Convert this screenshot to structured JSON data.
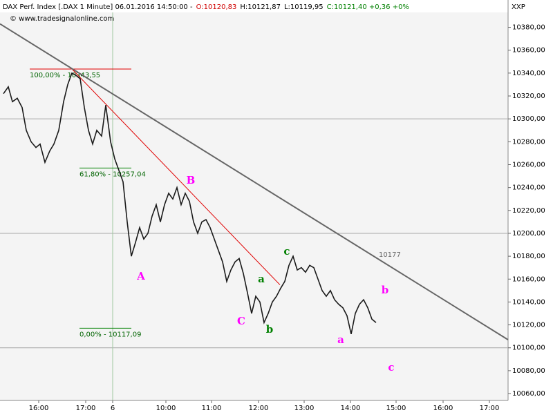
{
  "chart_data": {
    "type": "line",
    "header": [
      {
        "text": "DAX Perf. Index [.DAX  1 Minute] 06.01.2016 14:50:00 -",
        "color": "#000000"
      },
      {
        "text": "O:10120,83",
        "color": "#d00000"
      },
      {
        "text": "H:10121,87",
        "color": "#000000"
      },
      {
        "text": "L:10119,95",
        "color": "#000000"
      },
      {
        "text": "C:10121,40 +0,36 +0%",
        "color": "#008000"
      }
    ],
    "copyright": "© www.tradesignalonline.com",
    "axis_label": "XXP",
    "x": [
      5,
      12,
      18,
      25,
      32,
      38,
      45,
      52,
      58,
      65,
      72,
      78,
      85,
      92,
      98,
      104,
      110,
      116,
      122,
      128,
      134,
      140,
      147,
      153,
      160,
      166,
      172,
      178,
      184,
      190,
      196,
      202,
      208,
      214,
      220,
      226,
      232,
      238,
      244,
      250,
      256,
      262,
      268,
      274,
      280,
      286,
      292,
      298,
      304,
      310,
      316,
      322,
      328,
      334,
      340,
      346,
      352,
      358,
      364,
      370,
      376,
      382,
      388,
      394,
      400,
      406,
      412,
      418,
      424,
      430,
      436,
      442,
      448,
      454,
      460,
      466,
      472,
      478,
      484,
      490,
      496,
      502,
      508,
      514,
      520,
      526,
      532,
      538,
      544
    ],
    "values": [
      10322,
      10328,
      10315,
      10318,
      10310,
      10290,
      10280,
      10275,
      10278,
      10262,
      10272,
      10278,
      10290,
      10315,
      10330,
      10340,
      10338,
      10335,
      10310,
      10290,
      10278,
      10290,
      10285,
      10312,
      10280,
      10265,
      10255,
      10245,
      10210,
      10180,
      10192,
      10205,
      10195,
      10200,
      10215,
      10225,
      10210,
      10225,
      10235,
      10230,
      10240,
      10225,
      10235,
      10228,
      10210,
      10200,
      10210,
      10212,
      10205,
      10195,
      10185,
      10175,
      10158,
      10168,
      10175,
      10178,
      10165,
      10148,
      10130,
      10145,
      10140,
      10122,
      10130,
      10140,
      10145,
      10152,
      10158,
      10172,
      10180,
      10168,
      10170,
      10166,
      10172,
      10170,
      10160,
      10150,
      10145,
      10150,
      10142,
      10138,
      10135,
      10128,
      10112,
      10130,
      10138,
      10142,
      10135,
      10125,
      10122
    ],
    "color": "#1a1a1a",
    "xlim": [
      0,
      735
    ],
    "xticks": [
      {
        "value": 56,
        "label": "16:00"
      },
      {
        "value": 124,
        "label": "17:00"
      },
      {
        "value": 163,
        "label": "6"
      },
      {
        "value": 240,
        "label": "10:00"
      },
      {
        "value": 306,
        "label": "11:00"
      },
      {
        "value": 374,
        "label": "12:00"
      },
      {
        "value": 440,
        "label": "13:00"
      },
      {
        "value": 507,
        "label": "14:00"
      },
      {
        "value": 573,
        "label": "15:00"
      },
      {
        "value": 641,
        "label": "16:00"
      },
      {
        "value": 708,
        "label": "17:00"
      }
    ],
    "ylim": [
      10054,
      10393
    ],
    "yticks": [
      {
        "value": 10060,
        "label": "10060,00"
      },
      {
        "value": 10080,
        "label": "10080,00"
      },
      {
        "value": 10100,
        "label": "10100,00"
      },
      {
        "value": 10120,
        "label": "10120,00"
      },
      {
        "value": 10140,
        "label": "10140,00"
      },
      {
        "value": 10160,
        "label": "10160,00"
      },
      {
        "value": 10180,
        "label": "10180,00"
      },
      {
        "value": 10200,
        "label": "10200,00"
      },
      {
        "value": 10220,
        "label": "10220,00"
      },
      {
        "value": 10240,
        "label": "10240,00"
      },
      {
        "value": 10260,
        "label": "10260,00"
      },
      {
        "value": 10280,
        "label": "10280,00"
      },
      {
        "value": 10300,
        "label": "10300,00"
      },
      {
        "value": 10320,
        "label": "10320,00"
      },
      {
        "value": 10340,
        "label": "10340,00"
      },
      {
        "value": 10360,
        "label": "10360,00"
      },
      {
        "value": 10380,
        "label": "10380,00"
      }
    ],
    "hgrid": [
      10300,
      10200,
      10100
    ],
    "vgrid": [
      163
    ],
    "trendlines": [
      {
        "x": [
          0,
          735
        ],
        "y": [
          10383,
          10107
        ],
        "color": "#666666"
      },
      {
        "x": [
          105,
          405
        ],
        "y": [
          10343,
          10155
        ],
        "color": "#e00000"
      }
    ],
    "trend_value_label": "10177",
    "fib_levels": [
      {
        "value": 10343.55,
        "label": "100,00% - 10343,55",
        "x": [
          43,
          190
        ],
        "color": "#e00000"
      },
      {
        "value": 10257.04,
        "label": "61,80% - 10257,04",
        "x": [
          115,
          190
        ],
        "color": "#008000"
      },
      {
        "value": 10117.09,
        "label": "0,00% - 10117,09",
        "x": [
          115,
          190
        ],
        "color": "#008000"
      }
    ],
    "wave_labels": [
      {
        "text": "A",
        "color": "#ff00ff"
      },
      {
        "text": "B",
        "color": "#ff00ff"
      },
      {
        "text": "C",
        "color": "#ff00ff"
      },
      {
        "text": "a",
        "color": "#008000"
      },
      {
        "text": "b",
        "color": "#008000"
      },
      {
        "text": "c",
        "color": "#008000"
      },
      {
        "text": "a",
        "color": "#ff00ff"
      },
      {
        "text": "b",
        "color": "#ff00ff"
      },
      {
        "text": "c",
        "color": "#ff00ff"
      }
    ]
  }
}
